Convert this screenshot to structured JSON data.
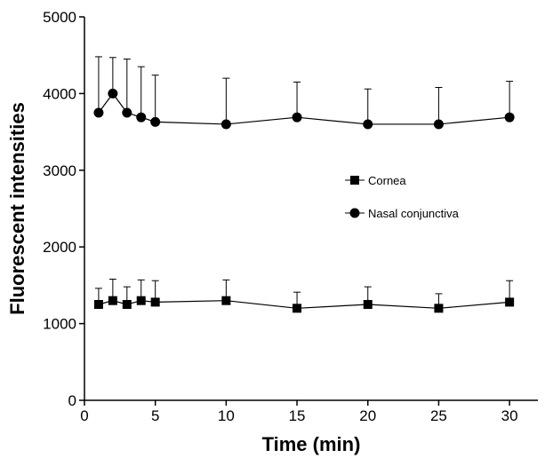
{
  "chart_data": {
    "type": "line",
    "title": "",
    "xlabel": "Time (min)",
    "ylabel": "Fluorescent intensities",
    "xlim": [
      0,
      32
    ],
    "ylim": [
      0,
      5000
    ],
    "x_ticks": [
      0,
      5,
      10,
      15,
      20,
      25,
      30
    ],
    "y_ticks": [
      0,
      1000,
      2000,
      3000,
      4000,
      5000
    ],
    "grid": false,
    "legend_position": "center-right",
    "error_bars": "upper",
    "series": [
      {
        "name": "Cornea",
        "marker": "square",
        "x": [
          1,
          2,
          3,
          4,
          5,
          10,
          15,
          20,
          25,
          30
        ],
        "values": [
          1250,
          1300,
          1250,
          1300,
          1280,
          1300,
          1200,
          1250,
          1200,
          1280
        ],
        "error_upper": [
          1460,
          1580,
          1480,
          1570,
          1560,
          1570,
          1410,
          1480,
          1390,
          1560
        ]
      },
      {
        "name": "Nasal conjunctiva",
        "marker": "circle",
        "x": [
          1,
          2,
          3,
          4,
          5,
          10,
          15,
          20,
          25,
          30
        ],
        "values": [
          3750,
          4000,
          3750,
          3690,
          3630,
          3600,
          3690,
          3600,
          3600,
          3690
        ],
        "error_upper": [
          4480,
          4470,
          4450,
          4350,
          4240,
          4200,
          4150,
          4060,
          4080,
          4160
        ]
      }
    ],
    "colors": {
      "line": "#000000",
      "marker": "#000000",
      "axis": "#000000"
    }
  }
}
